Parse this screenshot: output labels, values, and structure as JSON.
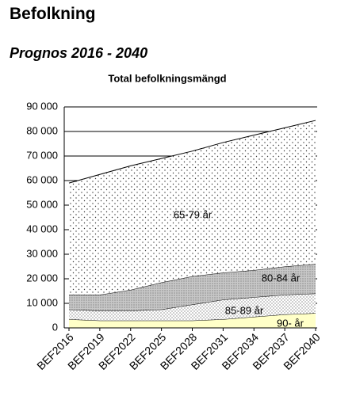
{
  "header": {
    "title": "Befolkning",
    "subtitle": "Prognos 2016 - 2040"
  },
  "chart_data": {
    "type": "stacked-area",
    "title": "Total befolkningsmängd",
    "categories": [
      "BEF2016",
      "BEF2019",
      "BEF2022",
      "BEF2025",
      "BEF2028",
      "BEF2031",
      "BEF2034",
      "BEF2037",
      "BEF2040"
    ],
    "series": [
      {
        "name": "90- år",
        "color": "#ffffc8",
        "values": [
          3500,
          3000,
          3000,
          3000,
          3000,
          3500,
          4500,
          5500,
          6000
        ]
      },
      {
        "name": "85-89 år",
        "color": "#ffffff",
        "pattern": "dots-dense",
        "values": [
          4000,
          4000,
          4000,
          4500,
          6500,
          8000,
          8000,
          8000,
          8000
        ]
      },
      {
        "name": "80-84 år",
        "color": "#c8c8c8",
        "pattern": "dots-gray",
        "values": [
          6000,
          6500,
          8500,
          11000,
          11500,
          11000,
          11000,
          11500,
          12000
        ]
      },
      {
        "name": "65-79 år",
        "color": "#ffffff",
        "pattern": "dots-sparse",
        "values": [
          45500,
          49000,
          50500,
          50500,
          51000,
          53000,
          55000,
          56500,
          58500
        ]
      }
    ],
    "ylim": [
      0,
      90000
    ],
    "yticks": [
      {
        "value": 0,
        "label": "0"
      },
      {
        "value": 10000,
        "label": "10 000"
      },
      {
        "value": 20000,
        "label": "20 000"
      },
      {
        "value": 30000,
        "label": "30 000"
      },
      {
        "value": 40000,
        "label": "40 000"
      },
      {
        "value": 50000,
        "label": "50 000"
      },
      {
        "value": 60000,
        "label": "60 000"
      },
      {
        "value": 70000,
        "label": "70 000"
      },
      {
        "value": 80000,
        "label": "80 000"
      },
      {
        "value": 90000,
        "label": "90 000"
      }
    ],
    "grid": true
  }
}
